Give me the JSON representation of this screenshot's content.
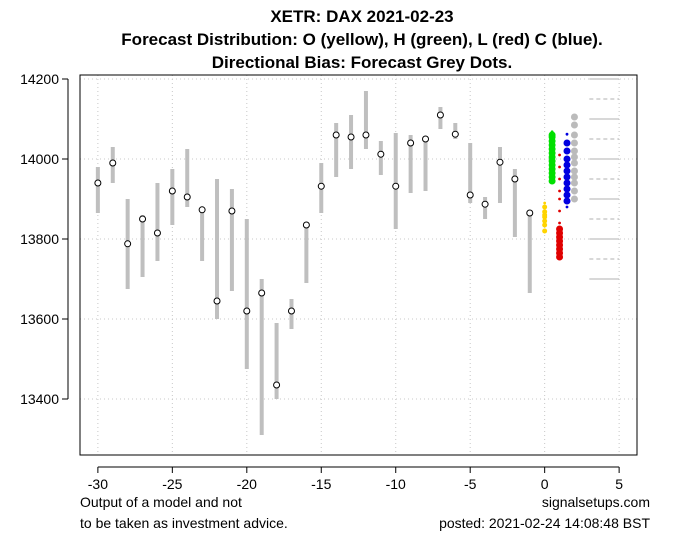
{
  "chart_data": {
    "type": "ohlc-forecast",
    "title": [
      "XETR: DAX 2021-02-23",
      "Forecast Distribution: O (yellow), H (green), L (red) C (blue).",
      "Directional Bias: Forecast Grey Dots."
    ],
    "xlabel": "",
    "ylabel": "",
    "xlim": [
      -31.2,
      6.2
    ],
    "ylim": [
      13260,
      14210
    ],
    "x_ticks": [
      -30,
      -25,
      -20,
      -15,
      -10,
      -5,
      0,
      5
    ],
    "y_ticks": [
      13400,
      13600,
      13800,
      14000,
      14200
    ],
    "grid": true,
    "bars": [
      {
        "x": -30,
        "high": 13980,
        "low": 13865,
        "close": 13940
      },
      {
        "x": -29,
        "high": 14030,
        "low": 13940,
        "close": 13990
      },
      {
        "x": -28,
        "high": 13900,
        "low": 13675,
        "close": 13788
      },
      {
        "x": -27,
        "high": 13860,
        "low": 13705,
        "close": 13850
      },
      {
        "x": -26,
        "high": 13940,
        "low": 13745,
        "close": 13815
      },
      {
        "x": -25,
        "high": 13975,
        "low": 13835,
        "close": 13920
      },
      {
        "x": -24,
        "high": 14025,
        "low": 13880,
        "close": 13905
      },
      {
        "x": -23,
        "high": 13880,
        "low": 13745,
        "close": 13873
      },
      {
        "x": -22,
        "high": 13950,
        "low": 13600,
        "close": 13645
      },
      {
        "x": -21,
        "high": 13925,
        "low": 13670,
        "close": 13870
      },
      {
        "x": -20,
        "high": 13850,
        "low": 13475,
        "close": 13620
      },
      {
        "x": -19,
        "high": 13700,
        "low": 13310,
        "close": 13665
      },
      {
        "x": -18,
        "high": 13590,
        "low": 13400,
        "close": 13435
      },
      {
        "x": -17,
        "high": 13650,
        "low": 13575,
        "close": 13620
      },
      {
        "x": -16,
        "high": 13835,
        "low": 13690,
        "close": 13835
      },
      {
        "x": -15,
        "high": 13990,
        "low": 13865,
        "close": 13932
      },
      {
        "x": -14,
        "high": 14090,
        "low": 13955,
        "close": 14060
      },
      {
        "x": -13,
        "high": 14110,
        "low": 13975,
        "close": 14055
      },
      {
        "x": -12,
        "high": 14170,
        "low": 14025,
        "close": 14060
      },
      {
        "x": -11,
        "high": 14045,
        "low": 13960,
        "close": 14012
      },
      {
        "x": -10,
        "high": 14065,
        "low": 13825,
        "close": 13932
      },
      {
        "x": -9,
        "high": 14060,
        "low": 13915,
        "close": 14040
      },
      {
        "x": -8,
        "high": 14055,
        "low": 13920,
        "close": 14050
      },
      {
        "x": -7,
        "high": 14130,
        "low": 14075,
        "close": 14110
      },
      {
        "x": -6,
        "high": 14090,
        "low": 14050,
        "close": 14062
      },
      {
        "x": -5,
        "high": 14040,
        "low": 13890,
        "close": 13910
      },
      {
        "x": -4,
        "high": 13905,
        "low": 13850,
        "close": 13887
      },
      {
        "x": -3,
        "high": 14030,
        "low": 13890,
        "close": 13992
      },
      {
        "x": -2,
        "high": 13975,
        "low": 13805,
        "close": 13950
      },
      {
        "x": -1,
        "high": 13870,
        "low": 13665,
        "close": 13865
      }
    ],
    "forecast": {
      "open": {
        "color": "#ffd400",
        "x": 0.0,
        "values": [
          13820,
          13835,
          13845,
          13855,
          13860,
          13868,
          13880
        ]
      },
      "high": {
        "color": "#00e000",
        "x": 0.5,
        "values": [
          13945,
          13955,
          13965,
          13975,
          13985,
          13995,
          14005,
          14015,
          14025,
          14035,
          14045,
          14055,
          14060
        ]
      },
      "low": {
        "color": "#e00000",
        "x": 1.0,
        "values": [
          13755,
          13765,
          13775,
          13785,
          13795,
          13805,
          13815,
          13825
        ]
      },
      "close": {
        "color": "#0000e0",
        "x": 1.5,
        "values": [
          13895,
          13910,
          13925,
          13940,
          13955,
          13970,
          13985,
          14000,
          14020,
          14040
        ]
      },
      "bias": {
        "color": "#bbbbbb",
        "x": 2.0,
        "values": [
          13900,
          13920,
          13940,
          13955,
          13970,
          13990,
          14005,
          14020,
          14040,
          14060,
          14085,
          14105
        ]
      }
    },
    "outliers": [
      {
        "color": "#ffd400",
        "x": 0.0,
        "values": [
          13882,
          13890
        ]
      },
      {
        "color": "#00e000",
        "x": 0.5,
        "values": [
          14068
        ]
      },
      {
        "color": "#e00000",
        "x": 1.0,
        "values": [
          13840,
          13870,
          13900,
          13920,
          13950,
          13980,
          14010
        ]
      },
      {
        "color": "#0000e0",
        "x": 1.5,
        "values": [
          13880,
          14062
        ]
      }
    ],
    "reference_levels": {
      "solid": [
        14200,
        14100,
        14000,
        13900,
        13800,
        13700
      ],
      "dashed": [
        14150,
        14050,
        13950,
        13850,
        13750
      ]
    }
  },
  "footer": {
    "left_line1": "Output of a model and not",
    "left_line2": "to be taken as investment advice.",
    "right_line1": "signalsetups.com",
    "right_line2": "posted: 2021-02-24 14:08:48 BST"
  },
  "colors": {
    "bar": "#bfbfbf",
    "grid": "#c8c8c8",
    "frame": "#000000"
  }
}
